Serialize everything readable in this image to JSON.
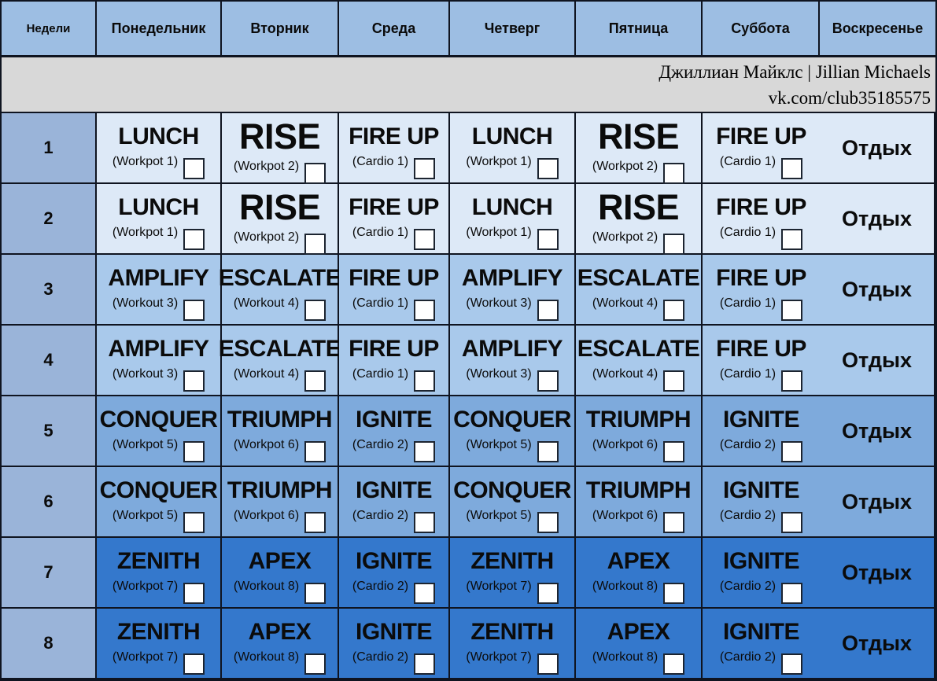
{
  "header": {
    "columns": [
      "Недели",
      "Понедельник",
      "Вторник",
      "Среда",
      "Четверг",
      "Пятница",
      "Суббота",
      "Воскресенье"
    ]
  },
  "banner": {
    "line1": "Джиллиан Майклс | Jillian Michaels",
    "line2": "vk.com/club35185575"
  },
  "rest_label": "Отдых",
  "colors": {
    "header_bg": "#9DBEE3",
    "week_col_bg": "#9AB4D9",
    "weeks_1_2_bg": "#DDE9F7",
    "weeks_3_4_bg": "#A9C9EB",
    "weeks_5_6_bg": "#7EAADC",
    "weeks_7_8_bg": "#3478CC",
    "banner_bg": "#D8D8D8",
    "grid_line": "#0F1420",
    "checkbox_bg": "#FFFFFF"
  },
  "weeks": [
    {
      "num": "1",
      "band": "weeks_1_2_bg",
      "cells": [
        {
          "title": "LUNCH",
          "sub": "(Workpot 1)",
          "big": false
        },
        {
          "title": "RISE",
          "sub": "(Workpot 2)",
          "big": true
        },
        {
          "title": "FIRE UP",
          "sub": "(Cardio 1)",
          "big": false
        },
        {
          "title": "LUNCH",
          "sub": "(Workpot 1)",
          "big": false
        },
        {
          "title": "RISE",
          "sub": "(Workpot 2)",
          "big": true
        },
        {
          "title": "FIRE UP",
          "sub": "(Cardio 1)",
          "big": false
        }
      ]
    },
    {
      "num": "2",
      "band": "weeks_1_2_bg",
      "cells": [
        {
          "title": "LUNCH",
          "sub": "(Workpot 1)",
          "big": false
        },
        {
          "title": "RISE",
          "sub": "(Workpot 2)",
          "big": true
        },
        {
          "title": "FIRE UP",
          "sub": "(Cardio 1)",
          "big": false
        },
        {
          "title": "LUNCH",
          "sub": "(Workpot 1)",
          "big": false
        },
        {
          "title": "RISE",
          "sub": "(Workpot 2)",
          "big": true
        },
        {
          "title": "FIRE UP",
          "sub": "(Cardio 1)",
          "big": false
        }
      ]
    },
    {
      "num": "3",
      "band": "weeks_3_4_bg",
      "cells": [
        {
          "title": "AMPLIFY",
          "sub": "(Workout 3)",
          "big": false
        },
        {
          "title": "ESCALATE",
          "sub": "(Workout 4)",
          "big": false
        },
        {
          "title": "FIRE UP",
          "sub": "(Cardio 1)",
          "big": false
        },
        {
          "title": "AMPLIFY",
          "sub": "(Workout 3)",
          "big": false
        },
        {
          "title": "ESCALATE",
          "sub": "(Workout 4)",
          "big": false
        },
        {
          "title": "FIRE UP",
          "sub": "(Cardio 1)",
          "big": false
        }
      ]
    },
    {
      "num": "4",
      "band": "weeks_3_4_bg",
      "cells": [
        {
          "title": "AMPLIFY",
          "sub": "(Workout 3)",
          "big": false
        },
        {
          "title": "ESCALATE",
          "sub": "(Workout 4)",
          "big": false
        },
        {
          "title": "FIRE UP",
          "sub": "(Cardio 1)",
          "big": false
        },
        {
          "title": "AMPLIFY",
          "sub": "(Workout 3)",
          "big": false
        },
        {
          "title": "ESCALATE",
          "sub": "(Workout 4)",
          "big": false
        },
        {
          "title": "FIRE UP",
          "sub": "(Cardio 1)",
          "big": false
        }
      ]
    },
    {
      "num": "5",
      "band": "weeks_5_6_bg",
      "cells": [
        {
          "title": "CONQUER",
          "sub": "(Workpot 5)",
          "big": false
        },
        {
          "title": "TRIUMPH",
          "sub": "(Workpot 6)",
          "big": false
        },
        {
          "title": "IGNITE",
          "sub": "(Cardio 2)",
          "big": false
        },
        {
          "title": "CONQUER",
          "sub": "(Workpot 5)",
          "big": false
        },
        {
          "title": "TRIUMPH",
          "sub": "(Workpot 6)",
          "big": false
        },
        {
          "title": "IGNITE",
          "sub": "(Cardio 2)",
          "big": false
        }
      ]
    },
    {
      "num": "6",
      "band": "weeks_5_6_bg",
      "cells": [
        {
          "title": "CONQUER",
          "sub": "(Workpot 5)",
          "big": false
        },
        {
          "title": "TRIUMPH",
          "sub": "(Workpot 6)",
          "big": false
        },
        {
          "title": "IGNITE",
          "sub": "(Cardio 2)",
          "big": false
        },
        {
          "title": "CONQUER",
          "sub": "(Workpot 5)",
          "big": false
        },
        {
          "title": "TRIUMPH",
          "sub": "(Workpot 6)",
          "big": false
        },
        {
          "title": "IGNITE",
          "sub": "(Cardio 2)",
          "big": false
        }
      ]
    },
    {
      "num": "7",
      "band": "weeks_7_8_bg",
      "cells": [
        {
          "title": "ZENITH",
          "sub": "(Workpot 7)",
          "big": false
        },
        {
          "title": "APEX",
          "sub": "(Workout 8)",
          "big": false
        },
        {
          "title": "IGNITE",
          "sub": "(Cardio 2)",
          "big": false
        },
        {
          "title": "ZENITH",
          "sub": "(Workpot 7)",
          "big": false
        },
        {
          "title": "APEX",
          "sub": "(Workout 8)",
          "big": false
        },
        {
          "title": "IGNITE",
          "sub": "(Cardio 2)",
          "big": false
        }
      ]
    },
    {
      "num": "8",
      "band": "weeks_7_8_bg",
      "cells": [
        {
          "title": "ZENITH",
          "sub": "(Workpot 7)",
          "big": false
        },
        {
          "title": "APEX",
          "sub": "(Workout 8)",
          "big": false
        },
        {
          "title": "IGNITE",
          "sub": "(Cardio 2)",
          "big": false
        },
        {
          "title": "ZENITH",
          "sub": "(Workpot 7)",
          "big": false
        },
        {
          "title": "APEX",
          "sub": "(Workout 8)",
          "big": false
        },
        {
          "title": "IGNITE",
          "sub": "(Cardio 2)",
          "big": false
        }
      ]
    }
  ]
}
